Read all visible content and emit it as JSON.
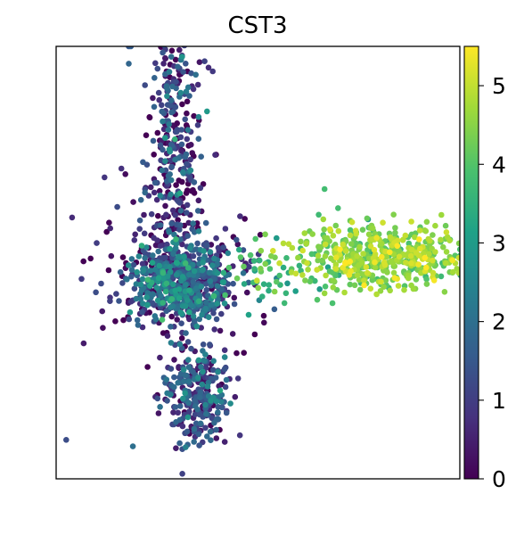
{
  "chart_data": {
    "type": "scatter",
    "title": "CST3",
    "xlabel": "",
    "ylabel": "",
    "axis_ticks_shown": false,
    "grid": false,
    "x_range": [
      -1.0,
      1.0
    ],
    "y_range": [
      -1.0,
      1.0
    ],
    "colormap": "viridis",
    "colormap_stops": [
      "#440154",
      "#46327e",
      "#365c8d",
      "#277f8e",
      "#1fa187",
      "#4ac16d",
      "#a0da39",
      "#fde725"
    ],
    "colorbar": {
      "range": [
        0,
        5.5
      ],
      "ticks": [
        0,
        1,
        2,
        3,
        4,
        5
      ],
      "tick_labels": [
        "0",
        "1",
        "2",
        "3",
        "4",
        "5"
      ],
      "placement": "right"
    },
    "clusters": [
      {
        "label": "upper stalk",
        "n": 420,
        "center": [
          -0.42,
          0.46
        ],
        "spread": [
          0.07,
          0.42
        ],
        "value_mean": 0.9,
        "value_sd": 0.9
      },
      {
        "label": "central mass",
        "n": 650,
        "center": [
          -0.37,
          -0.1
        ],
        "spread": [
          0.13,
          0.09
        ],
        "value_mean": 1.5,
        "value_sd": 0.9
      },
      {
        "label": "outer halo",
        "n": 110,
        "center": [
          -0.43,
          -0.05
        ],
        "spread": [
          0.23,
          0.2
        ],
        "value_mean": 0.3,
        "value_sd": 0.5
      },
      {
        "label": "lower blob",
        "n": 280,
        "center": [
          -0.3,
          -0.62
        ],
        "spread": [
          0.08,
          0.11
        ],
        "value_mean": 1.2,
        "value_sd": 0.8
      },
      {
        "label": "right cluster",
        "n": 520,
        "center": [
          0.62,
          0.03
        ],
        "spread": [
          0.21,
          0.07
        ],
        "value_mean": 4.5,
        "value_sd": 0.45
      },
      {
        "label": "bridge",
        "n": 50,
        "center": [
          0.02,
          -0.05
        ],
        "spread": [
          0.13,
          0.07
        ],
        "value_mean": 3.8,
        "value_sd": 0.6
      }
    ],
    "outliers": [
      {
        "x": -0.64,
        "y": 1.0,
        "value": 1.5
      },
      {
        "x": -0.63,
        "y": 1.0,
        "value": 1.6
      },
      {
        "x": -0.64,
        "y": 0.92,
        "value": 1.8
      },
      {
        "x": 0.33,
        "y": 0.34,
        "value": 3.8
      },
      {
        "x": -0.95,
        "y": -0.82,
        "value": 1.3
      },
      {
        "x": -0.62,
        "y": -0.85,
        "value": 2.0
      }
    ]
  }
}
